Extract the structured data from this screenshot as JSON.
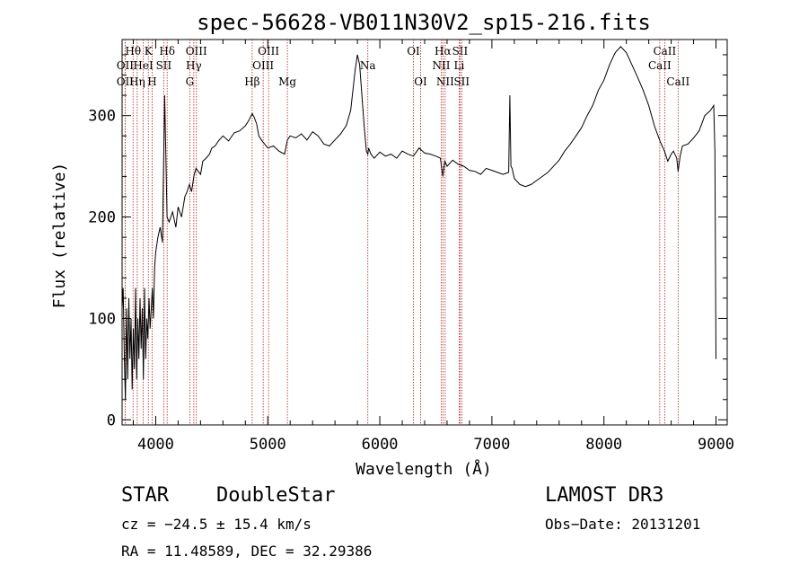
{
  "chart_data": {
    "type": "line",
    "title": "spec-56628-VB011N30V2_sp15-216.fits",
    "xlabel": "Wavelength (Å)",
    "ylabel": "Flux (relative)",
    "xlim": [
      3700,
      9100
    ],
    "ylim": [
      -5,
      375
    ],
    "xticks": [
      4000,
      5000,
      6000,
      7000,
      8000,
      9000
    ],
    "yticks": [
      0,
      100,
      200,
      300
    ],
    "grid": false,
    "series": [
      {
        "x": [
          3700,
          3710,
          3720,
          3730,
          3740,
          3750,
          3760,
          3770,
          3780,
          3790,
          3800,
          3810,
          3820,
          3830,
          3840,
          3850,
          3860,
          3870,
          3880,
          3890,
          3900,
          3910,
          3920,
          3930,
          3940,
          3950,
          3960,
          3970,
          3980,
          3990,
          4000,
          4020,
          4040,
          4060,
          4080,
          4101,
          4120,
          4150,
          4180,
          4200,
          4230,
          4260,
          4280,
          4300,
          4320,
          4340,
          4360,
          4380,
          4400,
          4420,
          4450,
          4480,
          4500,
          4530,
          4560,
          4600,
          4650,
          4700,
          4750,
          4800,
          4830,
          4861,
          4880,
          4900,
          4920,
          4950,
          5000,
          5050,
          5100,
          5150,
          5175,
          5200,
          5250,
          5300,
          5350,
          5400,
          5450,
          5500,
          5550,
          5600,
          5650,
          5700,
          5740,
          5780,
          5800,
          5820,
          5840,
          5860,
          5880,
          5893,
          5900,
          5920,
          5950,
          6000,
          6050,
          6100,
          6150,
          6200,
          6250,
          6300,
          6350,
          6400,
          6450,
          6500,
          6540,
          6563,
          6580,
          6600,
          6650,
          6700,
          6750,
          6800,
          6850,
          6900,
          6950,
          7000,
          7050,
          7100,
          7150,
          7160,
          7170,
          7180,
          7200,
          7250,
          7300,
          7350,
          7400,
          7450,
          7500,
          7550,
          7600,
          7650,
          7700,
          7750,
          7800,
          7850,
          7900,
          7950,
          8000,
          8050,
          8100,
          8150,
          8200,
          8250,
          8300,
          8350,
          8400,
          8450,
          8500,
          8540,
          8570,
          8600,
          8620,
          8650,
          8662,
          8680,
          8700,
          8750,
          8800,
          8850,
          8900,
          8950,
          8980,
          8990,
          9000
        ],
        "values": [
          110,
          130,
          60,
          20,
          110,
          40,
          120,
          60,
          100,
          30,
          90,
          50,
          130,
          40,
          100,
          60,
          120,
          70,
          110,
          40,
          130,
          60,
          100,
          80,
          120,
          90,
          110,
          130,
          100,
          150,
          165,
          180,
          190,
          175,
          320,
          200,
          195,
          205,
          190,
          210,
          200,
          220,
          225,
          232,
          225,
          240,
          248,
          245,
          242,
          255,
          258,
          262,
          268,
          270,
          275,
          280,
          275,
          283,
          285,
          290,
          295,
          302,
          298,
          292,
          280,
          275,
          268,
          270,
          265,
          262,
          276,
          280,
          278,
          282,
          276,
          284,
          280,
          272,
          270,
          276,
          282,
          290,
          305,
          345,
          360,
          350,
          320,
          290,
          265,
          262,
          268,
          262,
          258,
          264,
          260,
          262,
          258,
          265,
          262,
          260,
          268,
          263,
          262,
          260,
          258,
          240,
          255,
          250,
          256,
          252,
          250,
          246,
          245,
          242,
          248,
          246,
          244,
          242,
          244,
          320,
          250,
          248,
          238,
          232,
          230,
          232,
          236,
          240,
          244,
          250,
          256,
          265,
          272,
          280,
          288,
          300,
          310,
          325,
          335,
          350,
          362,
          368,
          362,
          350,
          338,
          325,
          310,
          290,
          275,
          265,
          255,
          262,
          265,
          258,
          245,
          260,
          270,
          272,
          278,
          285,
          300,
          305,
          310,
          265,
          60
        ]
      }
    ],
    "spectral_lines": [
      {
        "label": "Hθ",
        "x": 3798,
        "row": 1
      },
      {
        "label": "OII",
        "x": 3727,
        "row": 2
      },
      {
        "label": "OII",
        "x": 3727,
        "row": 3
      },
      {
        "label": "Hη",
        "x": 3835,
        "row": 3
      },
      {
        "label": "HeI",
        "x": 3889,
        "row": 2
      },
      {
        "label": "K",
        "x": 3934,
        "row": 1
      },
      {
        "label": "H",
        "x": 3968,
        "row": 3
      },
      {
        "label": "SII",
        "x": 4072,
        "row": 2
      },
      {
        "label": "Hδ",
        "x": 4102,
        "row": 1
      },
      {
        "label": "G",
        "x": 4304,
        "row": 3
      },
      {
        "label": "Hγ",
        "x": 4340,
        "row": 2
      },
      {
        "label": "OIII",
        "x": 4363,
        "row": 1
      },
      {
        "label": "Hβ",
        "x": 4861,
        "row": 3
      },
      {
        "label": "OIII",
        "x": 4959,
        "row": 2
      },
      {
        "label": "OIII",
        "x": 5007,
        "row": 1
      },
      {
        "label": "Mg",
        "x": 5175,
        "row": 3
      },
      {
        "label": "Na",
        "x": 5893,
        "row": 2
      },
      {
        "label": "OI",
        "x": 6300,
        "row": 1
      },
      {
        "label": "OI",
        "x": 6364,
        "row": 3
      },
      {
        "label": "NII",
        "x": 6548,
        "row": 2
      },
      {
        "label": "Hα",
        "x": 6563,
        "row": 1
      },
      {
        "label": "NII",
        "x": 6583,
        "row": 3
      },
      {
        "label": "Li",
        "x": 6708,
        "row": 2
      },
      {
        "label": "SII",
        "x": 6716,
        "row": 1
      },
      {
        "label": "SII",
        "x": 6731,
        "row": 3
      },
      {
        "label": "CaII",
        "x": 8498,
        "row": 2
      },
      {
        "label": "CaII",
        "x": 8542,
        "row": 1
      },
      {
        "label": "CaII",
        "x": 8662,
        "row": 3
      }
    ]
  },
  "info": {
    "class": "STAR",
    "subclass": "DoubleStar",
    "survey": "LAMOST DR3",
    "cz": "cz = −24.5 ± 15.4 km/s",
    "obs_date": "Obs−Date: 20131201",
    "coords": "RA =  11.48589, DEC =  32.29386"
  }
}
